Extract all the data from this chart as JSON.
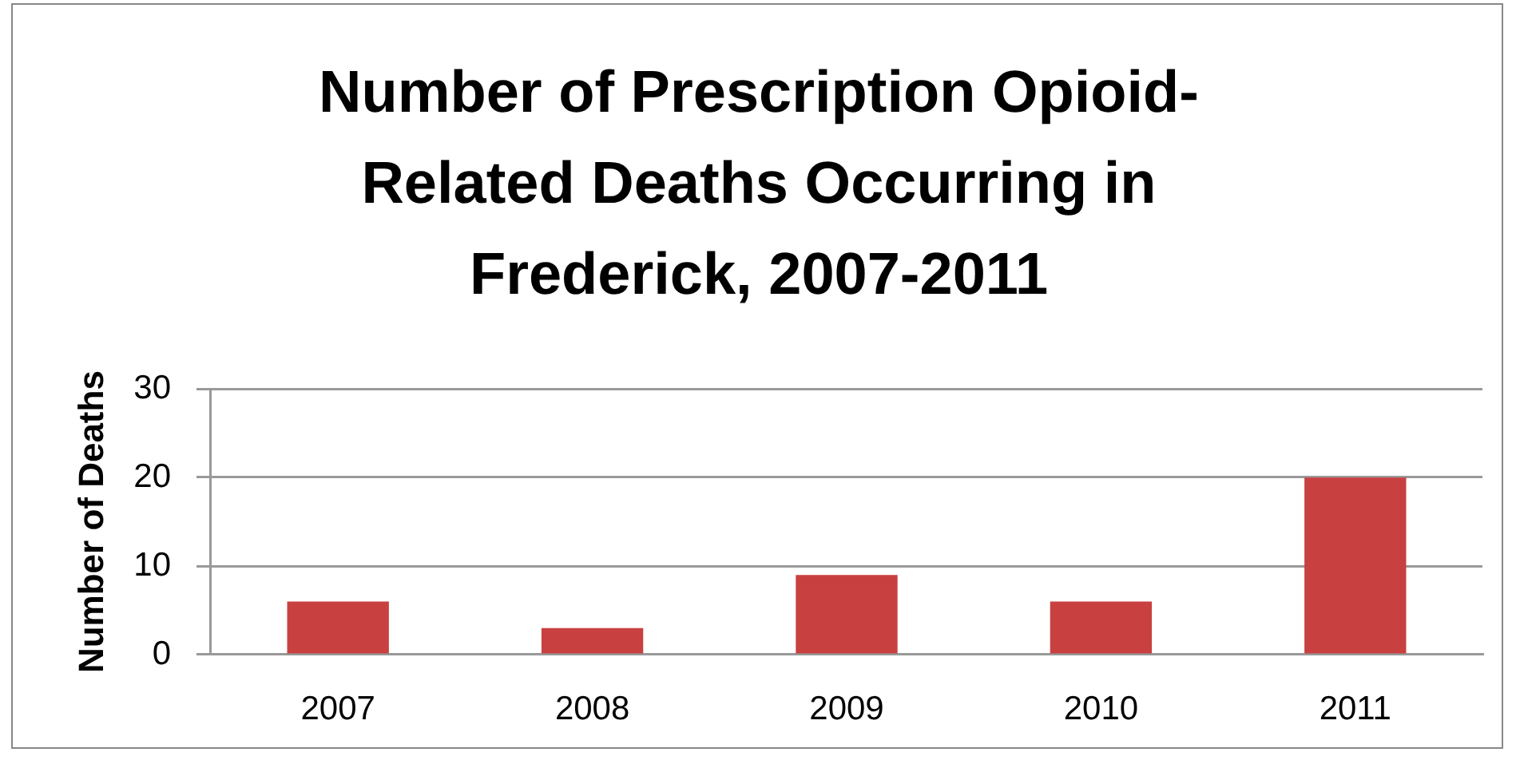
{
  "chart_data": {
    "type": "bar",
    "title": "Number of Prescription Opioid-Related Deaths Occurring in Frederick, 2007-2011",
    "ylabel": "Number of Deaths",
    "categories": [
      "2007",
      "2008",
      "2009",
      "2010",
      "2011"
    ],
    "values": [
      6,
      3,
      9,
      6,
      20
    ],
    "color": "#c94040",
    "ylim": [
      0,
      30
    ],
    "yticks": [
      0,
      10,
      20,
      30
    ],
    "grid": "y"
  }
}
